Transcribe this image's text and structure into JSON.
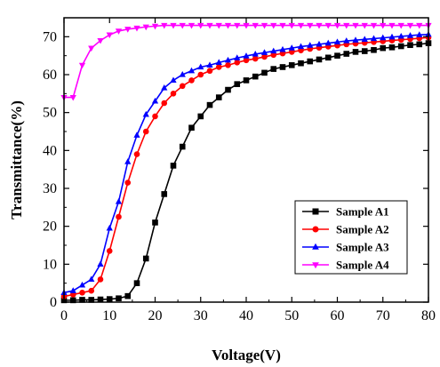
{
  "chart_data": {
    "type": "line",
    "title": "",
    "xlabel": "Voltage(V)",
    "ylabel": "Transmittance(%)",
    "xlim": [
      0,
      80
    ],
    "ylim": [
      0,
      75
    ],
    "xticks": [
      "0",
      "10",
      "20",
      "30",
      "40",
      "50",
      "60",
      "70",
      "80"
    ],
    "yticks": [
      "0",
      "10",
      "20",
      "30",
      "40",
      "50",
      "60",
      "70"
    ],
    "grid": false,
    "legend_position": "bottom-right",
    "series": [
      {
        "name": "Sample A1",
        "color": "#000000",
        "marker": "square",
        "x": [
          0,
          2,
          4,
          6,
          8,
          10,
          12,
          14,
          16,
          18,
          20,
          22,
          24,
          26,
          28,
          30,
          32,
          34,
          36,
          38,
          40,
          42,
          44,
          46,
          48,
          50,
          52,
          54,
          56,
          58,
          60,
          62,
          64,
          66,
          68,
          70,
          72,
          74,
          76,
          78,
          80
        ],
        "y": [
          0.5,
          0.5,
          0.6,
          0.6,
          0.7,
          0.8,
          1,
          1.6,
          5,
          11.5,
          21,
          28.5,
          36,
          41,
          46,
          49,
          52,
          54,
          56,
          57.5,
          58.5,
          59.5,
          60.5,
          61.5,
          62,
          62.5,
          63,
          63.5,
          64,
          64.5,
          65,
          65.5,
          66,
          66.2,
          66.5,
          67,
          67.2,
          67.5,
          67.8,
          68,
          68.3
        ]
      },
      {
        "name": "Sample A2",
        "color": "#ff0000",
        "marker": "circle",
        "x": [
          0,
          2,
          4,
          6,
          8,
          10,
          12,
          14,
          16,
          18,
          20,
          22,
          24,
          26,
          28,
          30,
          32,
          34,
          36,
          38,
          40,
          42,
          44,
          46,
          48,
          50,
          52,
          54,
          56,
          58,
          60,
          62,
          64,
          66,
          68,
          70,
          72,
          74,
          76,
          78,
          80
        ],
        "y": [
          1.5,
          2,
          2.5,
          3,
          6,
          13.5,
          22.5,
          31.5,
          39,
          45,
          49,
          52.5,
          55,
          57,
          58.5,
          60,
          61,
          62,
          62.5,
          63.2,
          63.8,
          64.2,
          64.7,
          65.2,
          65.6,
          66,
          66.4,
          66.8,
          67.1,
          67.4,
          67.7,
          68,
          68.2,
          68.4,
          68.6,
          68.8,
          69,
          69.2,
          69.4,
          69.6,
          69.8
        ]
      },
      {
        "name": "Sample A3",
        "color": "#0000ff",
        "marker": "triangle",
        "x": [
          0,
          2,
          4,
          6,
          8,
          10,
          12,
          14,
          16,
          18,
          20,
          22,
          24,
          26,
          28,
          30,
          32,
          34,
          36,
          38,
          40,
          42,
          44,
          46,
          48,
          50,
          52,
          54,
          56,
          58,
          60,
          62,
          64,
          66,
          68,
          70,
          72,
          74,
          76,
          78,
          80
        ],
        "y": [
          2.5,
          3,
          4.5,
          6,
          10,
          19.5,
          26.5,
          37,
          44,
          49.5,
          53,
          56.5,
          58.5,
          60,
          61,
          62,
          62.5,
          63.2,
          63.8,
          64.4,
          64.9,
          65.4,
          65.8,
          66.2,
          66.6,
          67,
          67.4,
          67.7,
          68,
          68.3,
          68.6,
          68.9,
          69.1,
          69.3,
          69.5,
          69.7,
          69.9,
          70.1,
          70.3,
          70.5,
          70.6
        ]
      },
      {
        "name": "Sample A4",
        "color": "#ff00ff",
        "marker": "triangle-down",
        "x": [
          0,
          2,
          4,
          6,
          8,
          10,
          12,
          14,
          16,
          18,
          20,
          22,
          24,
          26,
          28,
          30,
          32,
          34,
          36,
          38,
          40,
          42,
          44,
          46,
          48,
          50,
          52,
          54,
          56,
          58,
          60,
          62,
          64,
          66,
          68,
          70,
          72,
          74,
          76,
          78,
          80
        ],
        "y": [
          54,
          54,
          62.5,
          67,
          69,
          70.5,
          71.5,
          72,
          72.3,
          72.6,
          72.8,
          73,
          73,
          73,
          73,
          73,
          73,
          73,
          73,
          73,
          73,
          73,
          73,
          73,
          73,
          73,
          73,
          73,
          73,
          73,
          73,
          73,
          73,
          73,
          73,
          73,
          73,
          73,
          73,
          73,
          73
        ]
      }
    ]
  }
}
